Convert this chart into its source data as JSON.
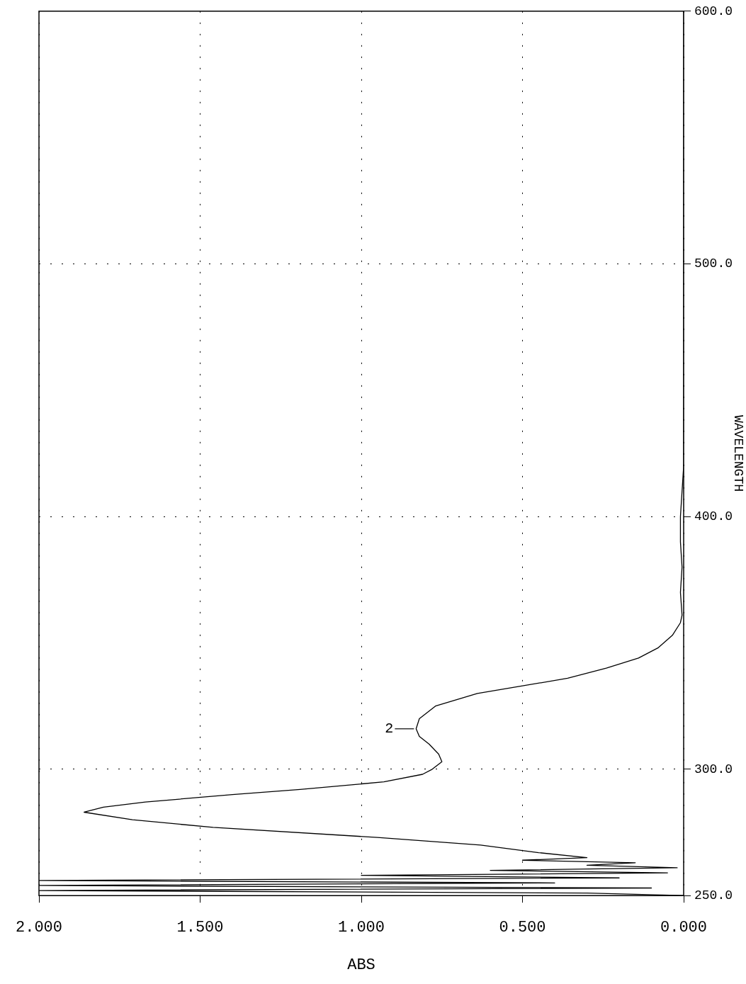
{
  "chart_data": {
    "type": "line",
    "xlabel": "ABS",
    "ylabel": "WAVELENGTH",
    "series": [
      {
        "color": "#000000",
        "x": [
          0,
          0.3,
          2.0,
          0.1,
          2.0,
          0.4,
          2.0,
          0.2,
          1.0,
          0.05,
          0.6,
          0.02,
          0.3,
          0.15,
          0.5,
          0.3,
          0.45,
          0.63,
          0.95,
          1.46,
          1.71,
          1.86,
          1.8,
          1.67,
          1.4,
          1.19,
          0.93,
          0.81,
          0.78,
          0.75,
          0.76,
          0.79,
          0.82,
          0.83,
          0.82,
          0.77,
          0.64,
          0.5,
          0.36,
          0.24,
          0.14,
          0.08,
          0.035,
          0.01,
          0.005,
          0.01,
          0.005,
          0.01,
          0.01,
          0.005,
          0,
          0
        ],
        "values": [
          250,
          251,
          252,
          253,
          254,
          255,
          256,
          257,
          258,
          259,
          260,
          261,
          262,
          263,
          264,
          265,
          267,
          270,
          273,
          277,
          280,
          283,
          285,
          287,
          290,
          292,
          295,
          298,
          300,
          303,
          306,
          310,
          313,
          316,
          320,
          325,
          330,
          333,
          336,
          340,
          344,
          348,
          353,
          358,
          361,
          370,
          380,
          390,
          400,
          410,
          420,
          600
        ]
      }
    ],
    "xlim": [
      2,
      0
    ],
    "xticks": [
      {
        "value": 2,
        "label": "2.000"
      },
      {
        "value": 1.5,
        "label": "1.500"
      },
      {
        "value": 1,
        "label": "1.000"
      },
      {
        "value": 0.5,
        "label": "0.500"
      },
      {
        "value": 0,
        "label": "0.000"
      }
    ],
    "ylim": [
      250,
      600
    ],
    "yticks": [
      {
        "value": 250,
        "label": "250.0"
      },
      {
        "value": 300,
        "label": "300.0"
      },
      {
        "value": 400,
        "label": "400.0"
      },
      {
        "value": 500,
        "label": "500.0"
      },
      {
        "value": 600,
        "label": "600.0"
      }
    ],
    "grid": true,
    "legend": false,
    "marker": "none",
    "line_style": "solid",
    "annotations": [
      {
        "text": "2",
        "x": 0.83,
        "y": 316
      }
    ]
  }
}
